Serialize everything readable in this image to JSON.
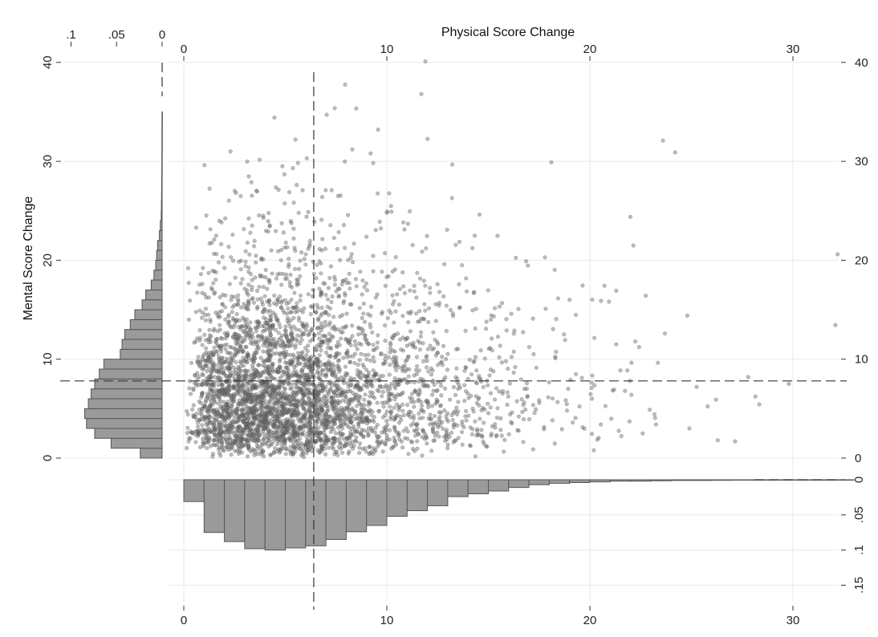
{
  "chart_data": {
    "type": "scatter",
    "title": "",
    "xlabel": "Physical Score Change",
    "ylabel": "Mental Score Change",
    "xlim": [
      0,
      33
    ],
    "ylim": [
      0,
      40
    ],
    "x_ticks": [
      "0",
      "10",
      "20",
      "30"
    ],
    "y_ticks": [
      "0",
      "10",
      "20",
      "30",
      "40"
    ],
    "grid": true,
    "reference_lines": {
      "x_mean": 6.4,
      "y_mean": 7.8
    },
    "scatter": {
      "point_count_approx": 4000,
      "notable_points": [
        {
          "x": 11.9,
          "y": 40.1
        },
        {
          "x": 11.7,
          "y": 36.8
        },
        {
          "x": 5.5,
          "y": 32.2
        },
        {
          "x": 23.6,
          "y": 32.1
        },
        {
          "x": 24.2,
          "y": 30.9
        },
        {
          "x": 32.2,
          "y": 20.6
        },
        {
          "x": 2.3,
          "y": 31.0
        },
        {
          "x": 8.3,
          "y": 31.2
        },
        {
          "x": 9.2,
          "y": 30.8
        },
        {
          "x": 18.1,
          "y": 29.9
        },
        {
          "x": 27.8,
          "y": 8.2
        },
        {
          "x": 29.8,
          "y": 7.5
        }
      ],
      "sample_points": [
        {
          "x": 1.2,
          "y": 4.1
        },
        {
          "x": 2.5,
          "y": 6.3
        },
        {
          "x": 3.1,
          "y": 3.2
        },
        {
          "x": 3.8,
          "y": 8.5
        },
        {
          "x": 4.4,
          "y": 5.0
        },
        {
          "x": 5.2,
          "y": 2.1
        },
        {
          "x": 2.0,
          "y": 11.4
        },
        {
          "x": 6.1,
          "y": 9.2
        },
        {
          "x": 7.0,
          "y": 4.4
        },
        {
          "x": 8.2,
          "y": 6.8
        },
        {
          "x": 9.1,
          "y": 3.0
        },
        {
          "x": 10.3,
          "y": 12.1
        },
        {
          "x": 12.4,
          "y": 5.5
        },
        {
          "x": 14.0,
          "y": 8.0
        },
        {
          "x": 16.5,
          "y": 4.2
        },
        {
          "x": 18.3,
          "y": 10.1
        },
        {
          "x": 20.1,
          "y": 6.0
        },
        {
          "x": 22.6,
          "y": 2.5
        },
        {
          "x": 4.8,
          "y": 15.2
        },
        {
          "x": 3.3,
          "y": 18.6
        },
        {
          "x": 6.8,
          "y": 21.0
        },
        {
          "x": 1.5,
          "y": 22.1
        },
        {
          "x": 8.9,
          "y": 17.3
        },
        {
          "x": 11.2,
          "y": 14.8
        },
        {
          "x": 13.7,
          "y": 19.5
        },
        {
          "x": 15.9,
          "y": 12.9
        },
        {
          "x": 19.0,
          "y": 16.0
        },
        {
          "x": 21.3,
          "y": 11.5
        },
        {
          "x": 24.8,
          "y": 14.4
        },
        {
          "x": 26.3,
          "y": 1.8
        },
        {
          "x": 7.6,
          "y": 26.5
        },
        {
          "x": 10.0,
          "y": 24.8
        }
      ]
    },
    "marginal_x_histogram": {
      "axis_label": "",
      "density_ticks": [
        "0",
        ".05",
        ".1",
        ".15"
      ],
      "bin_start": 0,
      "bin_width": 1,
      "density": [
        0.031,
        0.075,
        0.088,
        0.098,
        0.1,
        0.097,
        0.094,
        0.085,
        0.074,
        0.065,
        0.052,
        0.044,
        0.037,
        0.024,
        0.02,
        0.016,
        0.011,
        0.007,
        0.005,
        0.004,
        0.003,
        0.002,
        0.002,
        0.0015,
        0.001,
        0.001,
        0.0008,
        0.0006,
        0.0004,
        0.0003,
        0.0002,
        0.0001,
        0.0001
      ]
    },
    "marginal_y_histogram": {
      "axis_label": "",
      "density_ticks": [
        ".1",
        ".05",
        "0"
      ],
      "bin_start": 0,
      "bin_width": 1,
      "density": [
        0.024,
        0.056,
        0.074,
        0.083,
        0.085,
        0.081,
        0.078,
        0.074,
        0.069,
        0.064,
        0.046,
        0.044,
        0.041,
        0.035,
        0.03,
        0.022,
        0.018,
        0.012,
        0.009,
        0.007,
        0.006,
        0.005,
        0.003,
        0.002,
        0.001,
        0.0008,
        0.0006,
        0.0005,
        0.0004,
        0.0003,
        0.0003,
        0.0002,
        0.0002,
        0.0002,
        0.0001
      ]
    }
  }
}
